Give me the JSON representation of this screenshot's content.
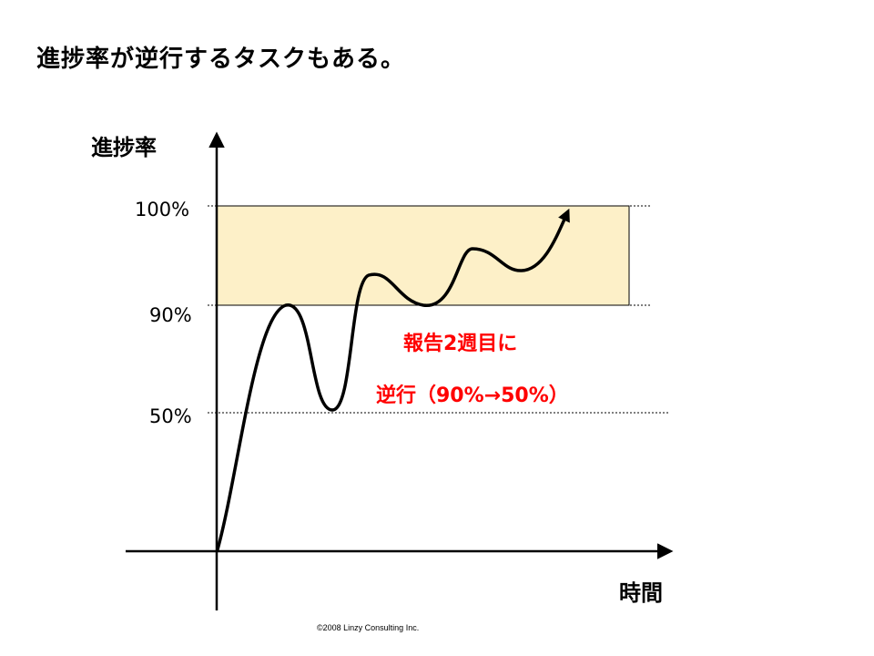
{
  "slide": {
    "title": "進捗率が逆行するタスクもある。",
    "copyright": "©2008 Linzy Consulting Inc."
  },
  "chart_data": {
    "type": "line",
    "ylabel": "進捗率",
    "xlabel": "時間",
    "y_scale": "ordinal",
    "y_ticks": [
      {
        "label": "100%",
        "value": 100
      },
      {
        "label": "90%",
        "value": 90
      },
      {
        "label": "50%",
        "value": 50
      }
    ],
    "target_band": {
      "from": 90,
      "to": 100
    },
    "series": [
      {
        "x": [
          0,
          2,
          3,
          3.5,
          4,
          5,
          5.5,
          6,
          7,
          8,
          9
        ],
        "y": [
          0,
          90,
          50,
          80,
          97,
          90,
          91,
          96,
          94,
          100,
          100
        ],
        "color": "#000000",
        "arrow_end": true
      }
    ],
    "annotations": [
      {
        "lines": [
          "報告2週目に",
          "逆行（90%→50%）"
        ],
        "color": "#ff0000"
      }
    ],
    "band_color": "#fdf0c8"
  }
}
